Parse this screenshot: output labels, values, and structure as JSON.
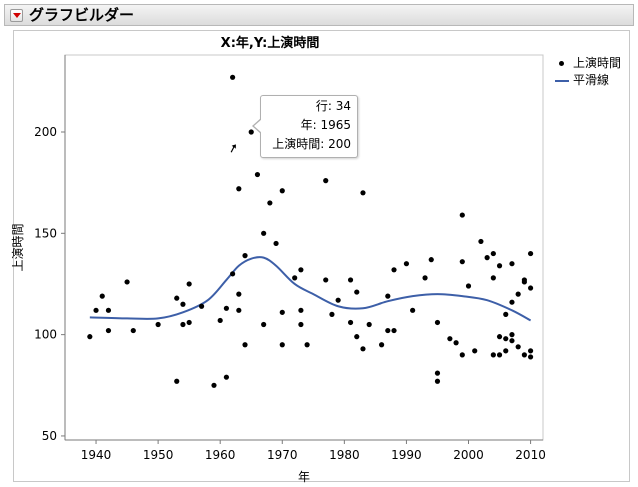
{
  "window": {
    "title": "グラフビルダー"
  },
  "chart_data": {
    "type": "scatter",
    "title": "X:年,Y:上演時間",
    "xlabel": "年",
    "ylabel": "上演時間",
    "xlim": [
      1935,
      2012
    ],
    "ylim": [
      48,
      238
    ],
    "xticks": [
      1940,
      1950,
      1960,
      1970,
      1980,
      1990,
      2000,
      2010
    ],
    "yticks": [
      50,
      100,
      150,
      200
    ],
    "grid": false,
    "legend_position": "right",
    "series": [
      {
        "name": "上演時間",
        "kind": "points",
        "color": "#000000",
        "x": [
          1939,
          1940,
          1941,
          1942,
          1942,
          1945,
          1946,
          1950,
          1953,
          1953,
          1954,
          1954,
          1955,
          1955,
          1957,
          1959,
          1960,
          1961,
          1961,
          1962,
          1962,
          1963,
          1963,
          1963,
          1964,
          1964,
          1965,
          1966,
          1967,
          1967,
          1968,
          1969,
          1970,
          1970,
          1970,
          1972,
          1973,
          1973,
          1973,
          1974,
          1977,
          1977,
          1978,
          1979,
          1981,
          1981,
          1982,
          1982,
          1983,
          1983,
          1984,
          1986,
          1987,
          1987,
          1988,
          1988,
          1990,
          1991,
          1993,
          1994,
          1995,
          1995,
          1995,
          1997,
          1998,
          1999,
          1999,
          1999,
          2000,
          2001,
          2002,
          2003,
          2004,
          2004,
          2004,
          2005,
          2005,
          2005,
          2006,
          2006,
          2006,
          2007,
          2007,
          2007,
          2007,
          2008,
          2008,
          2009,
          2009,
          2009,
          2010,
          2010,
          2010,
          2010
        ],
        "y": [
          99,
          112,
          119,
          112,
          102,
          126,
          102,
          105,
          77,
          118,
          115,
          105,
          125,
          106,
          114,
          75,
          107,
          79,
          113,
          227,
          130,
          172,
          112,
          120,
          139,
          95,
          200,
          179,
          150,
          105,
          165,
          145,
          171,
          95,
          111,
          128,
          132,
          112,
          105,
          95,
          176,
          127,
          110,
          117,
          127,
          106,
          121,
          99,
          170,
          93,
          105,
          95,
          102,
          119,
          102,
          132,
          135,
          112,
          128,
          137,
          81,
          77,
          106,
          98,
          96,
          90,
          159,
          136,
          124,
          92,
          146,
          138,
          140,
          128,
          90,
          134,
          99,
          90,
          110,
          98,
          92,
          135,
          116,
          100,
          97,
          120,
          94,
          126,
          90,
          127,
          140,
          92,
          89,
          123
        ]
      },
      {
        "name": "平滑線",
        "kind": "smoother",
        "color": "#3d5fa8",
        "x": [
          1939,
          1945,
          1950,
          1954,
          1958,
          1961,
          1963,
          1965,
          1967,
          1969,
          1972,
          1975,
          1979,
          1983,
          1987,
          1991,
          1995,
          1999,
          2003,
          2007,
          2010
        ],
        "y": [
          108.5,
          108,
          108,
          111,
          117,
          127,
          134,
          137.5,
          138,
          134,
          125,
          120,
          114,
          113,
          116.5,
          119,
          120,
          119,
          117,
          112,
          107
        ]
      }
    ],
    "annotations": [
      {
        "type": "point-label",
        "x": 1965,
        "y": 200
      }
    ]
  },
  "tooltip": {
    "row_label": "行:",
    "row_value": "34",
    "x_label": "年:",
    "x_value": "1965",
    "y_label": "上演時間:",
    "y_value": "200"
  },
  "legend": {
    "items": [
      {
        "label": "上演時間",
        "symbol": "dot"
      },
      {
        "label": "平滑線",
        "symbol": "line"
      }
    ]
  }
}
